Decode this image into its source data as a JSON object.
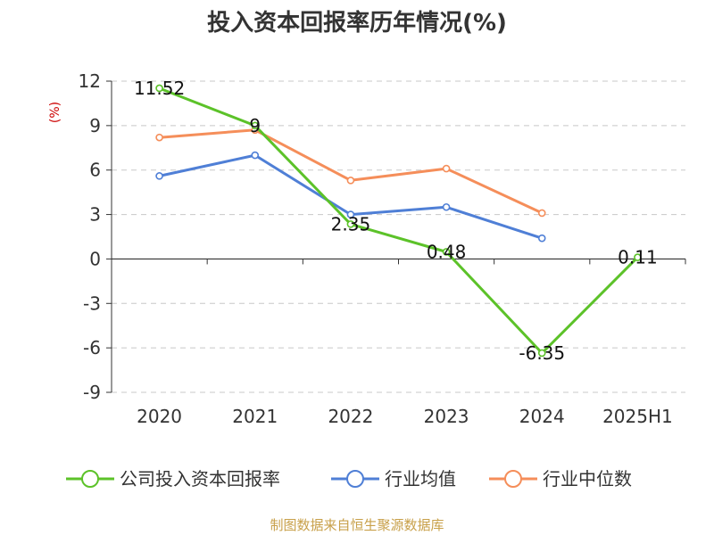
{
  "chart_data": {
    "type": "line",
    "title": "投入资本回报率历年情况(%)",
    "ylabel": "(%)",
    "categories": [
      "2020",
      "2021",
      "2022",
      "2023",
      "2024",
      "2025H1"
    ],
    "ylim": [
      -9,
      12
    ],
    "yticks": [
      12,
      9,
      6,
      3,
      0,
      -3,
      -6,
      -9
    ],
    "grid": "horizontal-dashed",
    "legend": "bottom",
    "series": [
      {
        "name": "公司投入资本回报率",
        "color": "#5cc229",
        "values": [
          11.52,
          9,
          2.35,
          0.48,
          -6.35,
          0.11
        ],
        "labels": [
          "11.52",
          "9",
          "2.35",
          "0.48",
          "-6.35",
          "0.11"
        ]
      },
      {
        "name": "行业均值",
        "color": "#4f7fd6",
        "values": [
          5.6,
          7.0,
          3.0,
          3.5,
          1.4,
          null
        ]
      },
      {
        "name": "行业中位数",
        "color": "#f58e5a",
        "values": [
          8.2,
          8.7,
          5.3,
          6.1,
          3.1,
          null
        ]
      }
    ]
  },
  "source_text": "制图数据来自恒生聚源数据库"
}
